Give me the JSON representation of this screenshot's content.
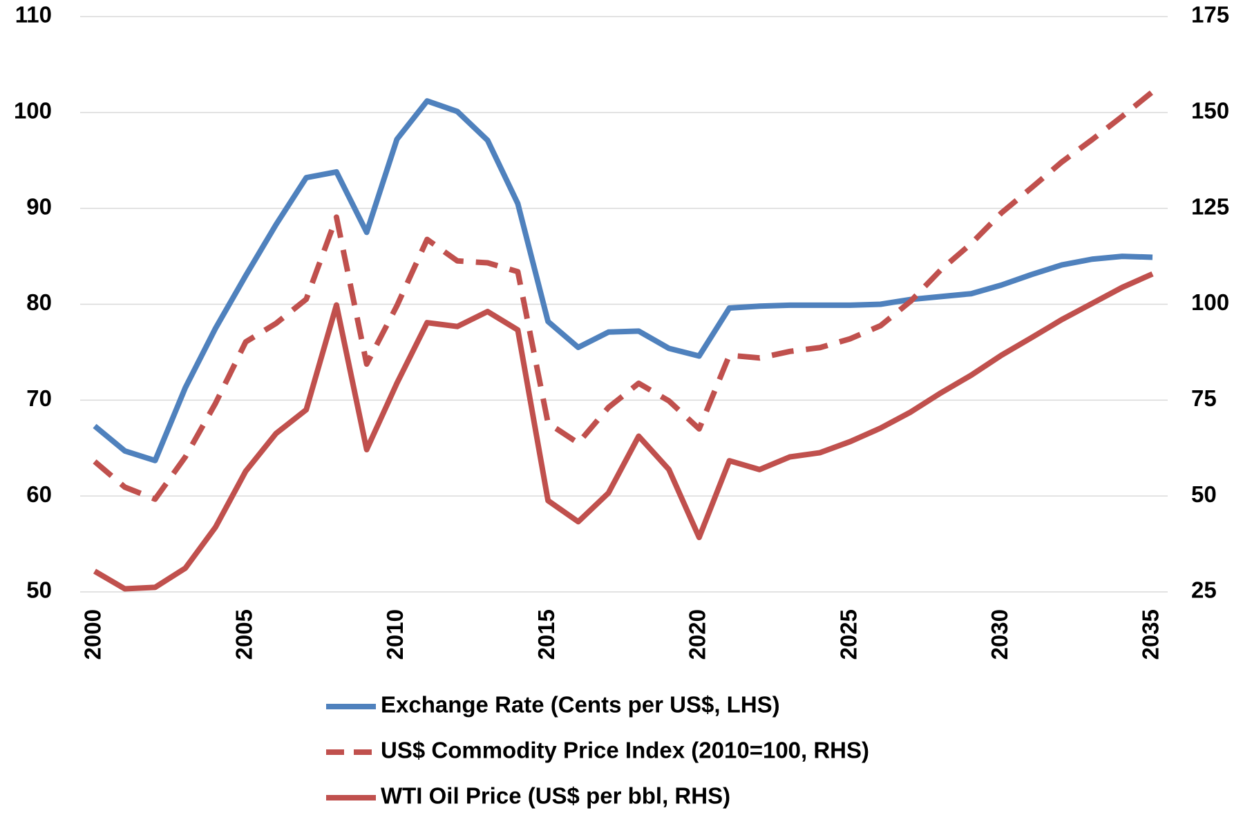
{
  "chart_data": {
    "type": "line",
    "x": [
      2000,
      2001,
      2002,
      2003,
      2004,
      2005,
      2006,
      2007,
      2008,
      2009,
      2010,
      2011,
      2012,
      2013,
      2014,
      2015,
      2016,
      2017,
      2018,
      2019,
      2020,
      2021,
      2022,
      2023,
      2024,
      2025,
      2026,
      2027,
      2028,
      2029,
      2030,
      2031,
      2032,
      2033,
      2034,
      2035
    ],
    "xlim": [
      2000,
      2035
    ],
    "xticks": [
      2000,
      2005,
      2010,
      2015,
      2020,
      2025,
      2030,
      2035
    ],
    "ylim": [
      50,
      110
    ],
    "yticks": [
      50,
      60,
      70,
      80,
      90,
      100,
      110
    ],
    "y2lim": [
      25,
      175
    ],
    "y2ticks": [
      25,
      50,
      75,
      100,
      125,
      150,
      175
    ],
    "grid": true,
    "legend": "bottom",
    "series": [
      {
        "name": "Exchange Rate (Cents per US$, LHS)",
        "color": "#4f81bd",
        "style": "solid",
        "values": [
          67.3,
          64.7,
          63.7,
          71.3,
          77.5,
          83.0,
          88.3,
          93.2,
          93.8,
          87.5,
          97.2,
          101.2,
          100.1,
          97.1,
          90.5,
          78.2,
          75.5,
          77.1,
          77.2,
          75.4,
          74.6,
          79.6,
          79.8,
          79.9,
          79.9,
          79.9,
          80.0,
          80.5,
          80.8,
          81.1,
          82.0,
          83.1,
          84.1,
          84.7,
          85.0,
          84.9
        ]
      },
      {
        "name": "US$ Commodity Price Index (2010=100, RHS)",
        "color": "#c0504d",
        "style": "dashed",
        "axis": "y2",
        "values": [
          59.0,
          52.3,
          49.2,
          60.2,
          74.2,
          90.2,
          95.0,
          101.3,
          122.7,
          84.4,
          99.6,
          116.9,
          111.3,
          110.8,
          108.5,
          69.0,
          63.8,
          73.1,
          79.4,
          74.8,
          67.5,
          86.7,
          86.0,
          87.7,
          88.7,
          91.0,
          94.4,
          100.8,
          109.0,
          115.8,
          123.8,
          130.4,
          137.1,
          142.9,
          149.0,
          155.4
        ]
      },
      {
        "name": "WTI Oil Price (US$ per bbl, RHS)",
        "color": "#c0504d",
        "style": "solid",
        "axis": "y2",
        "values": [
          30.4,
          25.8,
          26.2,
          31.2,
          41.9,
          56.5,
          66.3,
          72.5,
          99.8,
          62.1,
          79.4,
          95.2,
          94.2,
          98.1,
          93.3,
          48.8,
          43.3,
          50.8,
          65.6,
          56.9,
          39.2,
          59.2,
          56.9,
          60.2,
          61.3,
          64.2,
          67.7,
          71.9,
          76.9,
          81.5,
          86.7,
          91.3,
          96.0,
          100.2,
          104.4,
          107.9
        ]
      }
    ]
  }
}
